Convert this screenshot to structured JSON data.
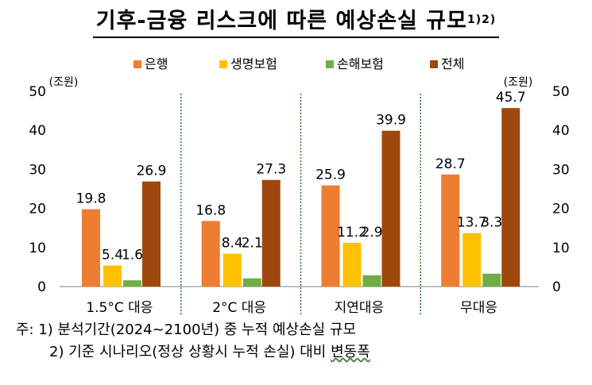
{
  "title": "기후-금융 리스크에 따른 예상손실 규모",
  "title_sup": "1)2)",
  "notes": {
    "prefix": "주:",
    "note1": "1) 분석기간(2024~2100년) 중 누적 예상손실 규모",
    "note2_a": "2) 기준 시나리오(정상 상황시 누적 손실) 대비 ",
    "note2_b": "변동폭"
  },
  "colors": {
    "bank": "#ED7D31",
    "life": "#FFC000",
    "nonlife": "#70AD47",
    "total": "#9E480E"
  },
  "chart_data": {
    "type": "bar",
    "categories": [
      "1.5°C 대응",
      "2°C 대응",
      "지연대응",
      "무대응"
    ],
    "series": [
      {
        "name": "은행",
        "values": [
          19.8,
          16.8,
          25.9,
          28.7
        ]
      },
      {
        "name": "생명보험",
        "values": [
          5.4,
          8.4,
          11.2,
          13.7
        ]
      },
      {
        "name": "손해보험",
        "values": [
          1.6,
          2.1,
          2.9,
          3.3
        ]
      },
      {
        "name": "전체",
        "values": [
          26.9,
          27.3,
          39.9,
          45.7
        ]
      }
    ],
    "ylim": [
      0,
      50
    ],
    "yticks": [
      0,
      10,
      20,
      30,
      40,
      50
    ],
    "ylabel_left": "(조원)",
    "ylabel_right": "(조원)",
    "legend_position": "top",
    "separators": "dotted-green"
  }
}
